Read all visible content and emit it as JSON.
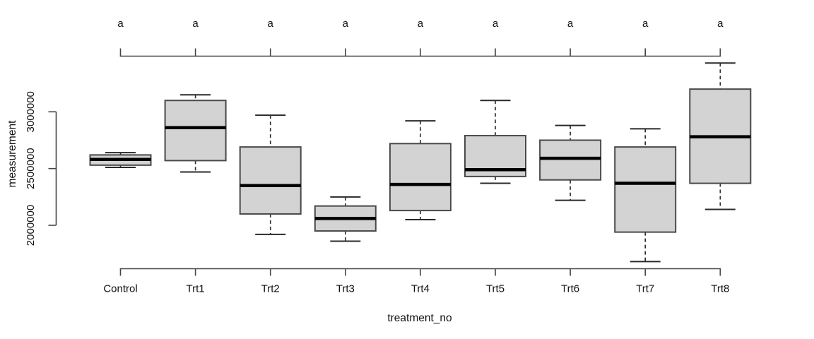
{
  "chart_data": {
    "type": "boxplot",
    "title": "",
    "xlabel": "treatment_no",
    "ylabel": "measurement",
    "y_ticks": [
      2000000,
      2500000,
      3000000
    ],
    "y_tick_labels": [
      "2000000",
      "2500000",
      "3000000"
    ],
    "ylim": [
      1650000,
      3460000
    ],
    "grid": false,
    "legend": "none",
    "top_axis": {
      "present": true,
      "letters": [
        "a",
        "a",
        "a",
        "a",
        "a",
        "a",
        "a",
        "a",
        "a"
      ]
    },
    "categories": [
      "Control",
      "Trt1",
      "Trt2",
      "Trt3",
      "Trt4",
      "Trt5",
      "Trt6",
      "Trt7",
      "Trt8"
    ],
    "groups": [
      {
        "label": "Control",
        "letter": "a",
        "whisker_low": 2510000,
        "q1": 2530000,
        "median": 2580000,
        "q3": 2620000,
        "whisker_high": 2640000
      },
      {
        "label": "Trt1",
        "letter": "a",
        "whisker_low": 2470000,
        "q1": 2570000,
        "median": 2860000,
        "q3": 3100000,
        "whisker_high": 3150000
      },
      {
        "label": "Trt2",
        "letter": "a",
        "whisker_low": 1920000,
        "q1": 2100000,
        "median": 2350000,
        "q3": 2690000,
        "whisker_high": 2970000
      },
      {
        "label": "Trt3",
        "letter": "a",
        "whisker_low": 1860000,
        "q1": 1950000,
        "median": 2060000,
        "q3": 2170000,
        "whisker_high": 2250000
      },
      {
        "label": "Trt4",
        "letter": "a",
        "whisker_low": 2050000,
        "q1": 2130000,
        "median": 2360000,
        "q3": 2720000,
        "whisker_high": 2920000
      },
      {
        "label": "Trt5",
        "letter": "a",
        "whisker_low": 2370000,
        "q1": 2430000,
        "median": 2490000,
        "q3": 2790000,
        "whisker_high": 3100000
      },
      {
        "label": "Trt6",
        "letter": "a",
        "whisker_low": 2220000,
        "q1": 2400000,
        "median": 2590000,
        "q3": 2750000,
        "whisker_high": 2880000
      },
      {
        "label": "Trt7",
        "letter": "a",
        "whisker_low": 1680000,
        "q1": 1940000,
        "median": 2370000,
        "q3": 2690000,
        "whisker_high": 2850000
      },
      {
        "label": "Trt8",
        "letter": "a",
        "whisker_low": 2140000,
        "q1": 2370000,
        "median": 2780000,
        "q3": 3200000,
        "whisker_high": 3430000
      }
    ]
  },
  "figure": {
    "background": "#ffffff",
    "box_fill": "#d3d3d3",
    "box_border": "#4a4a4a",
    "median_color": "#000000",
    "whisker_color": "#2a2a2a",
    "axis_color": "#444444",
    "text_color": "#111111"
  }
}
